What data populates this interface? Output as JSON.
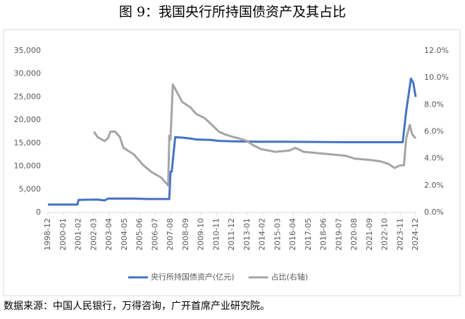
{
  "chart_data": {
    "type": "line",
    "title": "图 9：我国央行所持国债资产及其占比",
    "source": "数据来源：中国人民银行，万得咨询，广开首席产业研究院。",
    "xticks": [
      "1998-12",
      "2000-01",
      "2001-02",
      "2002-03",
      "2003-04",
      "2004-05",
      "2005-06",
      "2006-07",
      "2007-08",
      "2008-09",
      "2009-10",
      "2010-11",
      "2011-12",
      "2013-01",
      "2014-02",
      "2015-03",
      "2016-04",
      "2017-05",
      "2018-06",
      "2019-07",
      "2020-08",
      "2021-09",
      "2022-10",
      "2023-11",
      "2024-12"
    ],
    "ylim": [
      0,
      35000
    ],
    "yticks": [
      0,
      {
        "value": 5000,
        "label": "5,000"
      },
      {
        "value": 10000,
        "label": "10,000"
      },
      {
        "value": 15000,
        "label": "15,000"
      },
      {
        "value": 20000,
        "label": "20,000"
      },
      {
        "value": 25000,
        "label": "25,000"
      },
      {
        "value": 30000,
        "label": "30,000"
      },
      {
        "value": 35000,
        "label": "35,000"
      }
    ],
    "y2lim": [
      0,
      12
    ],
    "y2ticks": [
      {
        "value": 0,
        "label": "0.0%"
      },
      {
        "value": 2,
        "label": "2.0%"
      },
      {
        "value": 4,
        "label": "4.0%"
      },
      {
        "value": 6,
        "label": "6.0%"
      },
      {
        "value": 8,
        "label": "8.0%"
      },
      {
        "value": 10,
        "label": "10.0%"
      },
      {
        "value": 12,
        "label": "12.0%"
      }
    ],
    "series": [
      {
        "name": "央行所持国债资产(亿元)",
        "color": "#4472c4",
        "x": [
          "1998-12",
          "2001-01",
          "2001-02",
          "2002-06",
          "2002-12",
          "2003-03",
          "2004-01",
          "2005-01",
          "2006-01",
          "2007-07",
          "2007-08",
          "2007-09",
          "2007-12",
          "2008-06",
          "2009-01",
          "2009-06",
          "2010-06",
          "2011-01",
          "2012-01",
          "2014-01",
          "2016-01",
          "2020-01",
          "2023-06",
          "2024-01",
          "2024-04",
          "2024-08",
          "2024-10",
          "2024-12"
        ],
        "values": [
          1700,
          1700,
          2700,
          2800,
          2600,
          3000,
          3000,
          3000,
          2900,
          2900,
          8800,
          8800,
          16300,
          16200,
          16000,
          15800,
          15700,
          15500,
          15400,
          15300,
          15300,
          15200,
          15200,
          15200,
          22000,
          29000,
          28000,
          25000
        ]
      },
      {
        "name": "占比(右轴)",
        "color": "#a5a5a5",
        "axis": "y2",
        "x": [
          "2002-03",
          "2002-06",
          "2002-12",
          "2003-03",
          "2003-05",
          "2003-09",
          "2004-01",
          "2004-04",
          "2005-01",
          "2005-09",
          "2006-04",
          "2006-12",
          "2007-06",
          "2007-07",
          "2007-08",
          "2007-10",
          "2008-01",
          "2008-06",
          "2009-01",
          "2009-06",
          "2010-01",
          "2010-06",
          "2011-01",
          "2011-06",
          "2012-01",
          "2012-06",
          "2013-01",
          "2013-06",
          "2014-01",
          "2015-01",
          "2016-01",
          "2016-06",
          "2017-01",
          "2018-01",
          "2019-01",
          "2020-01",
          "2020-08",
          "2021-09",
          "2022-06",
          "2023-01",
          "2023-06",
          "2023-11",
          "2024-02",
          "2024-04",
          "2024-07",
          "2024-09",
          "2024-12"
        ],
        "values": [
          6.0,
          5.6,
          5.3,
          5.5,
          6.0,
          6.0,
          5.6,
          4.8,
          4.3,
          3.5,
          3.0,
          2.6,
          2.0,
          5.7,
          5.4,
          9.5,
          9.0,
          8.2,
          7.8,
          7.3,
          7.0,
          6.6,
          6.0,
          5.8,
          5.6,
          5.5,
          5.3,
          5.0,
          4.7,
          4.5,
          4.6,
          4.8,
          4.5,
          4.4,
          4.3,
          4.2,
          4.0,
          3.9,
          3.8,
          3.6,
          3.3,
          3.5,
          3.5,
          5.5,
          6.5,
          5.8,
          5.5
        ]
      }
    ]
  }
}
